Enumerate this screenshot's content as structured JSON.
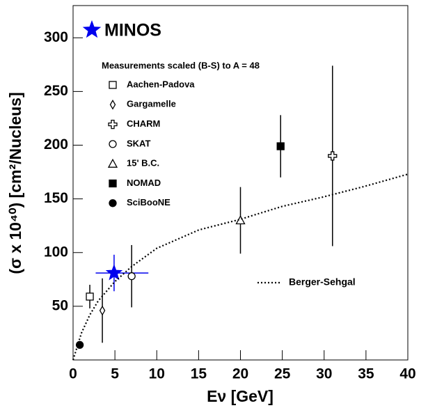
{
  "chart_data": {
    "type": "scatter",
    "y_label": "(σ x 10⁴⁰) [cm²/Nucleus]",
    "x_label": "Eν [GeV]",
    "legend_title": "Measurements scaled (B-S) to A = 48",
    "xlim": [
      0,
      40
    ],
    "xticks": [
      0,
      5,
      10,
      15,
      20,
      25,
      30,
      35,
      40
    ],
    "ylim": [
      0,
      330
    ],
    "yticks": [
      50,
      100,
      150,
      200,
      250,
      300
    ],
    "series": [
      {
        "name": "MINOS",
        "marker": "star",
        "color": "#0000ee",
        "x": [
          4.9
        ],
        "y": [
          81
        ],
        "yerr": [
          17
        ],
        "xerr_low": [
          2.2
        ],
        "xerr_high": [
          4.1
        ]
      },
      {
        "name": "Aachen-Padova",
        "marker": "square-open",
        "color": "#000000",
        "x": [
          2
        ],
        "y": [
          59
        ],
        "yerr": [
          11
        ]
      },
      {
        "name": "Gargamelle",
        "marker": "diamond-open",
        "color": "#000000",
        "x": [
          3.5
        ],
        "y": [
          46
        ],
        "yerr": [
          30
        ]
      },
      {
        "name": "CHARM",
        "marker": "cross-open",
        "color": "#000000",
        "x": [
          31
        ],
        "y": [
          190
        ],
        "yerr": [
          84
        ]
      },
      {
        "name": "SKAT",
        "marker": "circle-open",
        "color": "#000000",
        "x": [
          7
        ],
        "y": [
          78
        ],
        "yerr": [
          29
        ]
      },
      {
        "name": "15' B.C.",
        "marker": "triangle-open",
        "color": "#000000",
        "x": [
          20
        ],
        "y": [
          130
        ],
        "yerr": [
          31
        ]
      },
      {
        "name": "NOMAD",
        "marker": "square-filled",
        "color": "#000000",
        "x": [
          24.8
        ],
        "y": [
          199
        ],
        "yerr": [
          29
        ]
      },
      {
        "name": "SciBooNE",
        "marker": "circle-filled",
        "color": "#000000",
        "x": [
          0.8
        ],
        "y": [
          14
        ]
      },
      {
        "name": "Berger-Sehgal",
        "marker": "line",
        "color": "#000000",
        "x": [
          0,
          1,
          2,
          3,
          5,
          7,
          10,
          15,
          20,
          25,
          30,
          35,
          40
        ],
        "y": [
          0,
          25,
          42,
          55,
          73,
          87,
          104,
          121,
          131,
          143,
          152,
          162,
          173
        ]
      }
    ]
  }
}
